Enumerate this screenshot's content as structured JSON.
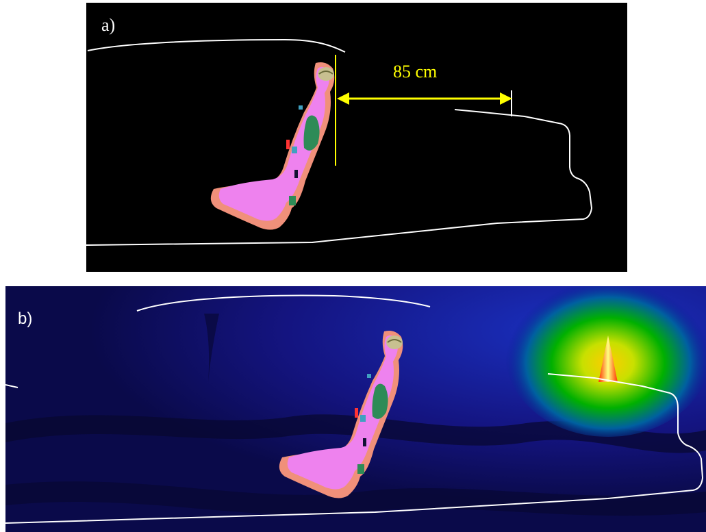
{
  "panels": {
    "a": {
      "label": "a)",
      "distance_label": "85 cm",
      "colors": {
        "background": "#000000",
        "vehicle_outline": "#ffffff",
        "dimension": "#ffff00"
      }
    },
    "b": {
      "label": "b)",
      "colors": {
        "background": "#0a0a4a",
        "field_low": "#1a1aa0",
        "field_mid": "#00c000",
        "field_high": "#ffcc00",
        "field_peak": "#ff3300",
        "vehicle_outline": "#ffffff"
      }
    }
  },
  "phantom_colors": {
    "skin": "#f0907a",
    "muscle": "#ee82ee",
    "organ": "#2e8b57",
    "brain": "#c8c090",
    "detail": "#40a0c0"
  }
}
